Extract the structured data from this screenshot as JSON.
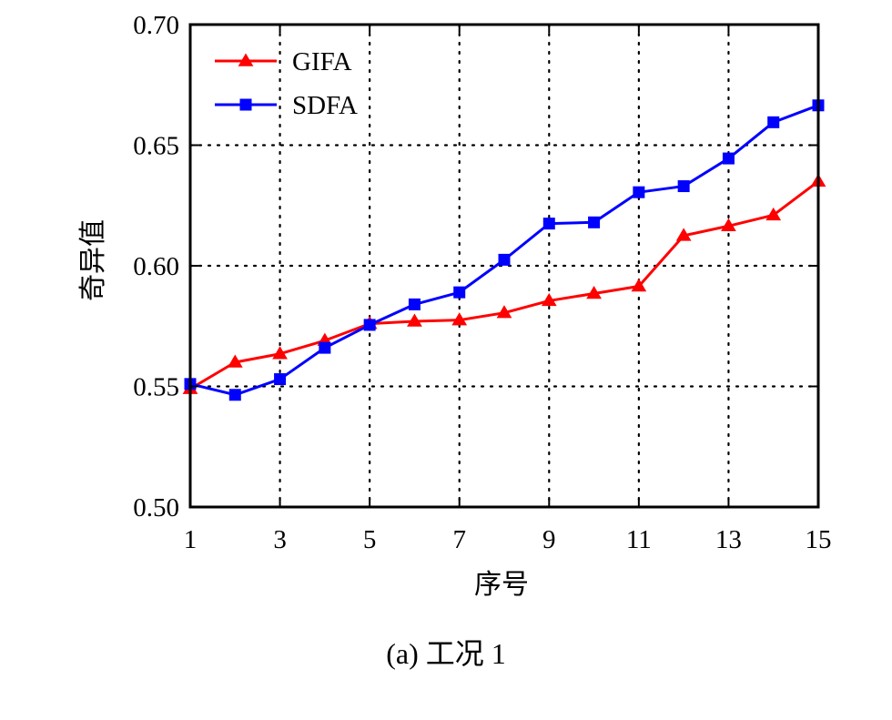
{
  "caption": "(a)  工况 1",
  "chart_data": {
    "type": "line",
    "title": "",
    "xlabel": "序号",
    "ylabel": "奇异值",
    "x": [
      1,
      2,
      3,
      4,
      5,
      6,
      7,
      8,
      9,
      10,
      11,
      12,
      13,
      14,
      15
    ],
    "xlim": [
      1,
      15
    ],
    "ylim": [
      0.5,
      0.7
    ],
    "xticks": [
      1,
      3,
      5,
      7,
      9,
      11,
      13,
      15
    ],
    "xtick_labels": [
      "1",
      "3",
      "5",
      "7",
      "9",
      "11",
      "13",
      "15"
    ],
    "yticks": [
      0.5,
      0.55,
      0.6,
      0.65,
      0.7
    ],
    "ytick_labels": [
      "0.50",
      "0.55",
      "0.60",
      "0.65",
      "0.70"
    ],
    "grid": true,
    "legend_position": "top-left",
    "series": [
      {
        "name": "GIFA",
        "color": "#ff0000",
        "marker": "triangle",
        "start_y": 0.5485,
        "values": [
          0.549,
          0.56,
          0.5635,
          0.569,
          0.576,
          0.577,
          0.5775,
          0.5805,
          0.5855,
          0.5885,
          0.5915,
          0.6125,
          0.6165,
          0.621,
          0.635
        ]
      },
      {
        "name": "SDFA",
        "color": "#0000ff",
        "marker": "square",
        "start_y": 0.5445,
        "values": [
          0.551,
          0.5465,
          0.553,
          0.566,
          0.5755,
          0.584,
          0.589,
          0.6025,
          0.6175,
          0.618,
          0.6305,
          0.633,
          0.6445,
          0.6595,
          0.6665
        ]
      }
    ]
  }
}
